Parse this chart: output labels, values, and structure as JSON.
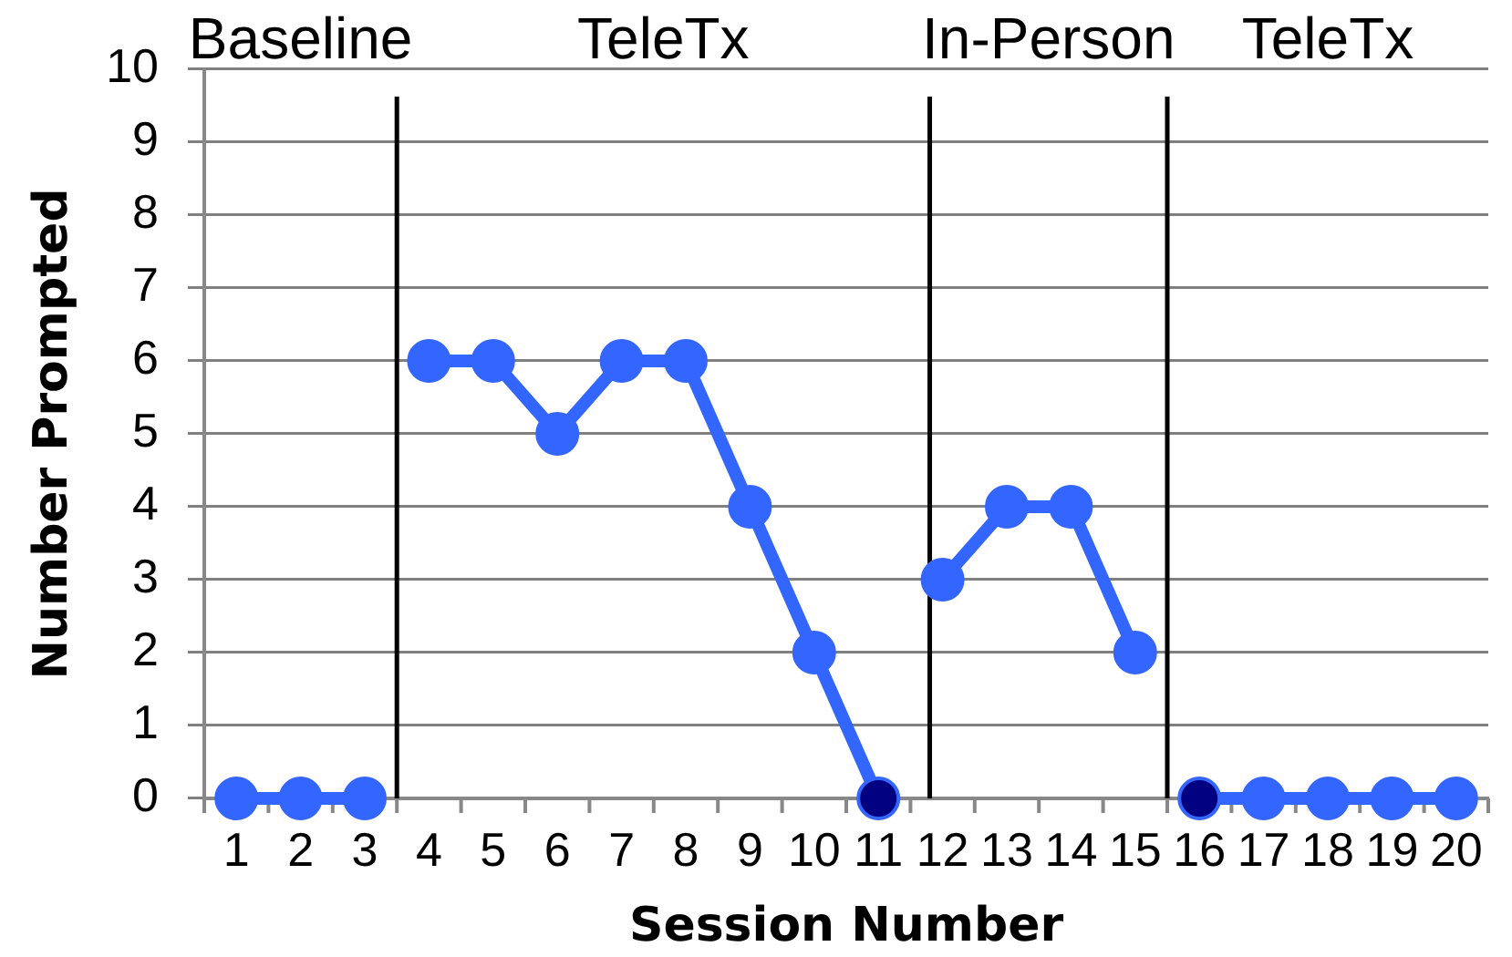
{
  "chart_data": {
    "type": "line",
    "xlabel": "Session Number",
    "ylabel": "Number Prompted",
    "xlim": [
      0.5,
      20.5
    ],
    "xticks": [
      1,
      2,
      3,
      4,
      5,
      6,
      7,
      8,
      9,
      10,
      11,
      12,
      13,
      14,
      15,
      16,
      17,
      18,
      19,
      20
    ],
    "ylim": [
      0,
      10
    ],
    "yticks": [
      0,
      1,
      2,
      3,
      4,
      5,
      6,
      7,
      8,
      9,
      10
    ],
    "grid": "y",
    "marker": "circle",
    "line_style": "solid",
    "series": [
      {
        "color": "#3366ff",
        "x": [
          1,
          2,
          3
        ],
        "values": [
          0,
          0,
          0
        ]
      },
      {
        "color": "#3366ff",
        "colors": [
          "#3366ff",
          "#3366ff",
          "#3366ff",
          "#3366ff",
          "#3366ff",
          "#3366ff",
          "#3366ff",
          "#000080"
        ],
        "x": [
          4,
          5,
          6,
          7,
          8,
          9,
          10,
          11
        ],
        "values": [
          6,
          6,
          5,
          6,
          6,
          4,
          2,
          0
        ]
      },
      {
        "color": "#3366ff",
        "x": [
          12,
          13,
          14,
          15
        ],
        "values": [
          3,
          4,
          4,
          2
        ]
      },
      {
        "color": "#3366ff",
        "colors": [
          "#000080",
          "#3366ff",
          "#3366ff",
          "#3366ff",
          "#3366ff"
        ],
        "x": [
          16,
          17,
          18,
          19,
          20
        ],
        "values": [
          0,
          0,
          0,
          0,
          0
        ]
      }
    ],
    "ref_lines": [
      {
        "axis": "x",
        "value": 3.5,
        "color": "#000000"
      },
      {
        "axis": "x",
        "value": 11.8,
        "color": "#000000"
      },
      {
        "axis": "x",
        "value": 15.5,
        "color": "#000000"
      }
    ],
    "annotations": [
      "Baseline",
      "TeleTx",
      "In-Person",
      "TeleTx"
    ]
  }
}
